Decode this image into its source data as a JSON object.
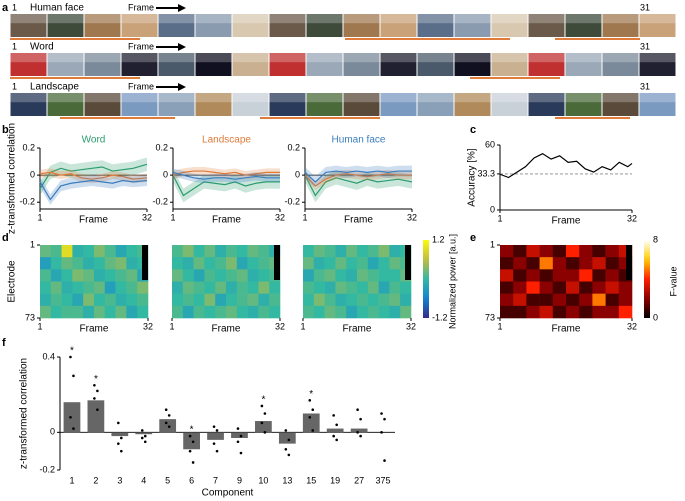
{
  "panel_labels": [
    "a",
    "b",
    "c",
    "d",
    "e",
    "f"
  ],
  "stimuli": [
    {
      "title": "Human face",
      "first": "1",
      "last": "31",
      "axis_label": "Frame"
    },
    {
      "title": "Word",
      "first": "1",
      "last": "31",
      "axis_label": "Frame"
    },
    {
      "title": "Landscape",
      "first": "1",
      "last": "31",
      "axis_label": "Frame"
    }
  ],
  "chart_data": [
    {
      "type": "line",
      "title": "Word",
      "title_color": "#2a9d6e",
      "ylabel": "z-transformed correlation",
      "xlabel": "Frame",
      "x": [
        1,
        4,
        7,
        10,
        13,
        16,
        19,
        22,
        25,
        28,
        32
      ],
      "xlim": [
        1,
        32
      ],
      "xticks": [
        1,
        32
      ],
      "ylim": [
        -0.25,
        0.2
      ],
      "yticks": [
        -0.2,
        0,
        0.2
      ],
      "reference_line": 0,
      "series": [
        {
          "color": "#2a9d6e",
          "error": 0.05,
          "values": [
            -0.1,
            0.02,
            0.05,
            0.03,
            0.04,
            0.05,
            0.06,
            0.03,
            0.04,
            0.05,
            0.08
          ]
        },
        {
          "color": "#e07b39",
          "error": 0.03,
          "values": [
            0.01,
            0.02,
            0.0,
            0.01,
            -0.02,
            -0.03,
            -0.02,
            0.0,
            -0.01,
            -0.03,
            -0.02
          ]
        },
        {
          "color": "#3a7dbf",
          "error": 0.04,
          "values": [
            -0.05,
            -0.18,
            -0.08,
            -0.06,
            -0.05,
            -0.04,
            -0.05,
            -0.06,
            -0.04,
            -0.05,
            -0.04
          ]
        }
      ]
    },
    {
      "type": "line",
      "title": "Landscape",
      "title_color": "#e07b39",
      "xlabel": "Frame",
      "x": [
        1,
        4,
        7,
        10,
        13,
        16,
        19,
        22,
        25,
        28,
        32
      ],
      "xlim": [
        1,
        32
      ],
      "xticks": [
        1,
        32
      ],
      "ylim": [
        -0.25,
        0.2
      ],
      "yticks": [
        -0.2,
        0,
        0.2
      ],
      "reference_line": 0,
      "series": [
        {
          "color": "#2a9d6e",
          "error": 0.05,
          "values": [
            0.0,
            -0.15,
            -0.1,
            -0.05,
            -0.06,
            -0.07,
            -0.05,
            -0.08,
            -0.06,
            -0.05,
            -0.05
          ]
        },
        {
          "color": "#e07b39",
          "error": 0.03,
          "values": [
            0.0,
            0.02,
            0.03,
            0.03,
            0.02,
            0.01,
            0.02,
            0.0,
            0.01,
            0.02,
            0.02
          ]
        },
        {
          "color": "#3a7dbf",
          "error": 0.03,
          "values": [
            0.02,
            0.0,
            -0.02,
            -0.03,
            -0.02,
            -0.02,
            -0.03,
            -0.02,
            -0.01,
            -0.02,
            -0.02
          ]
        }
      ]
    },
    {
      "type": "line",
      "title": "Human face",
      "title_color": "#3a7dbf",
      "xlabel": "Frame",
      "x": [
        1,
        4,
        7,
        10,
        13,
        16,
        19,
        22,
        25,
        28,
        32
      ],
      "xlim": [
        1,
        32
      ],
      "xticks": [
        1,
        32
      ],
      "ylim": [
        -0.25,
        0.2
      ],
      "yticks": [
        -0.2,
        0,
        0.2
      ],
      "reference_line": 0,
      "series": [
        {
          "color": "#2a9d6e",
          "error": 0.05,
          "values": [
            0.0,
            -0.15,
            -0.05,
            -0.02,
            -0.04,
            -0.06,
            -0.03,
            -0.05,
            -0.04,
            -0.03,
            -0.05
          ]
        },
        {
          "color": "#e07b39",
          "error": 0.03,
          "values": [
            0.0,
            -0.08,
            -0.03,
            0.0,
            0.01,
            0.0,
            -0.01,
            0.0,
            0.01,
            0.0,
            0.0
          ]
        },
        {
          "color": "#3a7dbf",
          "error": 0.04,
          "values": [
            0.02,
            -0.05,
            0.02,
            0.03,
            0.02,
            0.03,
            0.02,
            0.03,
            0.02,
            0.03,
            0.03
          ]
        }
      ]
    },
    {
      "type": "line",
      "ylabel": "Accuracy [%]",
      "xlabel": "Frame",
      "x": [
        1,
        3,
        5,
        7,
        9,
        11,
        13,
        15,
        17,
        19,
        21,
        23,
        25,
        27,
        29,
        31,
        32
      ],
      "xlim": [
        1,
        32
      ],
      "xticks": [
        1,
        32
      ],
      "ylim": [
        0,
        60
      ],
      "yticks": [
        0,
        33.3,
        60
      ],
      "reference_line": 33.3,
      "reference_dashed": true,
      "series": [
        {
          "color": "#000000",
          "values": [
            33,
            30,
            35,
            40,
            48,
            52,
            47,
            50,
            44,
            45,
            38,
            35,
            40,
            37,
            44,
            40,
            43
          ]
        }
      ]
    },
    {
      "type": "heatmap",
      "ylabel": "Electrode",
      "xlabel": "Frame",
      "xlim": [
        1,
        32
      ],
      "xticks": [
        1,
        32
      ],
      "ylim": [
        1,
        73
      ],
      "yticks": [
        1,
        73
      ],
      "colormap": "parula",
      "clim": [
        -1.2,
        1.2
      ],
      "z": [
        [
          0.2,
          0.1,
          0.9,
          -0.1,
          0.0,
          0.3,
          0.1,
          -0.2,
          0.0,
          0.1
        ],
        [
          -0.3,
          0.0,
          0.2,
          0.1,
          -0.1,
          0.0,
          0.2,
          0.3,
          -0.1,
          0.0
        ],
        [
          0.1,
          -0.2,
          0.0,
          0.3,
          0.2,
          -0.1,
          0.0,
          0.1,
          0.2,
          -0.2
        ],
        [
          0.0,
          0.2,
          -0.1,
          0.0,
          0.1,
          0.2,
          -0.3,
          0.0,
          0.1,
          0.3
        ],
        [
          -0.1,
          0.1,
          0.0,
          -0.2,
          0.3,
          0.0,
          0.1,
          -0.1,
          0.0,
          0.1
        ],
        [
          0.2,
          0.0,
          0.1,
          0.1,
          -0.1,
          0.2,
          0.0,
          0.2,
          -0.2,
          0.0
        ]
      ]
    },
    {
      "type": "heatmap",
      "xlabel": "Frame",
      "xlim": [
        1,
        32
      ],
      "xticks": [
        1,
        32
      ],
      "ylim": [
        1,
        73
      ],
      "colormap": "parula",
      "clim": [
        -1.2,
        1.2
      ],
      "z": [
        [
          0.1,
          0.3,
          0.0,
          0.2,
          -0.1,
          0.1,
          0.0,
          0.2,
          0.1,
          -0.1
        ],
        [
          0.0,
          -0.1,
          0.2,
          0.0,
          0.1,
          0.3,
          -0.2,
          0.0,
          0.1,
          0.2
        ],
        [
          0.2,
          0.0,
          -0.2,
          0.1,
          0.0,
          0.1,
          0.2,
          -0.1,
          0.0,
          0.1
        ],
        [
          -0.1,
          0.2,
          0.1,
          0.0,
          0.2,
          -0.1,
          0.1,
          0.0,
          0.3,
          0.0
        ],
        [
          0.0,
          0.1,
          0.0,
          0.3,
          -0.2,
          0.0,
          0.1,
          0.2,
          -0.1,
          0.1
        ],
        [
          0.1,
          -0.2,
          0.1,
          0.0,
          0.1,
          0.2,
          0.0,
          -0.1,
          0.1,
          0.0
        ]
      ]
    },
    {
      "type": "heatmap",
      "xlabel": "Frame",
      "xlim": [
        1,
        32
      ],
      "xticks": [
        1,
        32
      ],
      "ylim": [
        1,
        73
      ],
      "colormap": "parula",
      "clim": [
        -1.2,
        1.2
      ],
      "colorbar": true,
      "cticks": [
        -1.2,
        1.2
      ],
      "colorbar_label": "Normalized power [a.u.]",
      "z": [
        [
          0.0,
          0.2,
          0.1,
          -0.1,
          0.2,
          0.0,
          0.1,
          0.3,
          -0.1,
          0.0
        ],
        [
          0.2,
          -0.1,
          0.0,
          0.2,
          0.0,
          0.1,
          -0.2,
          0.0,
          0.2,
          0.1
        ],
        [
          -0.2,
          0.1,
          0.2,
          0.0,
          -0.1,
          0.2,
          0.1,
          0.0,
          0.0,
          0.2
        ],
        [
          0.1,
          0.0,
          -0.1,
          0.2,
          0.1,
          0.0,
          0.2,
          -0.2,
          0.1,
          0.0
        ],
        [
          0.0,
          0.3,
          0.1,
          -0.1,
          0.0,
          0.1,
          0.0,
          0.1,
          0.2,
          -0.1
        ],
        [
          0.1,
          0.0,
          0.2,
          0.1,
          -0.2,
          0.0,
          0.1,
          0.0,
          -0.1,
          0.2
        ]
      ]
    },
    {
      "type": "heatmap",
      "xlim": [
        1,
        32
      ],
      "xticks": [
        1,
        32
      ],
      "ylim": [
        1,
        73
      ],
      "yticks": [
        1,
        73
      ],
      "xlabel": "Frame",
      "colormap": "hot",
      "clim": [
        0,
        8
      ],
      "colorbar": true,
      "cticks": [
        0,
        8
      ],
      "colorbar_label": "F-value",
      "z": [
        [
          2,
          1,
          3,
          2,
          1,
          4,
          2,
          1,
          2,
          3
        ],
        [
          1,
          2,
          1,
          5,
          2,
          1,
          2,
          3,
          1,
          2
        ],
        [
          3,
          1,
          2,
          1,
          2,
          2,
          4,
          1,
          2,
          1
        ],
        [
          1,
          2,
          4,
          2,
          1,
          3,
          1,
          2,
          3,
          2
        ],
        [
          2,
          3,
          1,
          1,
          2,
          1,
          2,
          5,
          1,
          2
        ],
        [
          1,
          1,
          2,
          3,
          1,
          2,
          1,
          2,
          2,
          4
        ]
      ]
    },
    {
      "type": "bar",
      "ylabel": "z-transformed correlation",
      "xlabel": "Component",
      "color": "#666666",
      "categories": [
        "1",
        "2",
        "3",
        "4",
        "5",
        "6",
        "7",
        "9",
        "10",
        "13",
        "15",
        "19",
        "27",
        "375"
      ],
      "values": [
        0.16,
        0.17,
        -0.02,
        -0.01,
        0.07,
        -0.09,
        -0.04,
        -0.03,
        0.06,
        -0.06,
        0.1,
        0.02,
        0.02,
        0.0
      ],
      "points": [
        [
          0.4,
          0.3,
          0.08,
          0.02
        ],
        [
          0.25,
          0.22,
          0.18,
          0.12
        ],
        [
          0.05,
          -0.03,
          -0.06,
          -0.1
        ],
        [
          0.01,
          -0.02,
          -0.03,
          -0.05
        ],
        [
          0.12,
          0.09,
          0.05,
          0.03
        ],
        [
          -0.02,
          -0.05,
          -0.1,
          -0.16
        ],
        [
          0.03,
          0.01,
          -0.06,
          -0.1
        ],
        [
          0.02,
          -0.02,
          -0.05,
          -0.11
        ],
        [
          0.14,
          0.1,
          0.05,
          0.0
        ],
        [
          0.01,
          -0.04,
          -0.09,
          -0.12
        ],
        [
          0.17,
          0.12,
          0.08,
          0.01
        ],
        [
          0.09,
          0.04,
          -0.02,
          -0.04
        ],
        [
          0.12,
          0.07,
          0.0,
          -0.02
        ],
        [
          0.1,
          0.07,
          0.0,
          -0.15
        ]
      ],
      "significant": [
        true,
        true,
        false,
        false,
        false,
        true,
        false,
        false,
        true,
        false,
        true,
        false,
        false,
        false
      ],
      "significance_label": "*",
      "ylim": [
        -0.2,
        0.4
      ],
      "yticks": [
        -0.2,
        0,
        0.4
      ],
      "reference_line": 0
    }
  ]
}
